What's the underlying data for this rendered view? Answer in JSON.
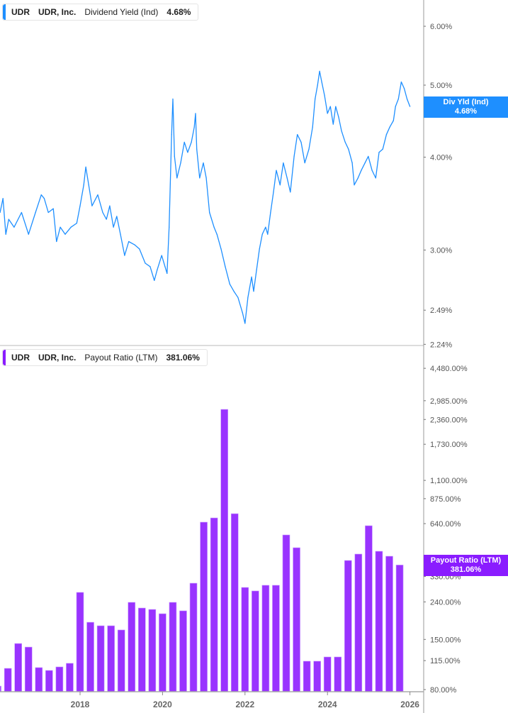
{
  "colors": {
    "yield": "#1e8fff",
    "payout": "#9933ff",
    "payout_tag": "#8a1cff",
    "axis": "#999999"
  },
  "top_legend": {
    "ticker": "UDR",
    "company": "UDR, Inc.",
    "metric": "Dividend Yield (Ind)",
    "value": "4.68%"
  },
  "top_tag": {
    "label": "Div Yld (Ind)",
    "value": "4.68%"
  },
  "bottom_legend": {
    "ticker": "UDR",
    "company": "UDR, Inc.",
    "metric": "Payout Ratio (LTM)",
    "value": "381.06%"
  },
  "bottom_tag": {
    "label": "Payout Ratio (LTM)",
    "value": "381.06%"
  },
  "chart_data": [
    {
      "type": "line",
      "title": "",
      "series_label": "Dividend Yield (Ind)",
      "y_scale": "log",
      "ylim": [
        2.24,
        6.6
      ],
      "y_ticks": [
        "6.00%",
        "5.00%",
        "4.00%",
        "3.00%",
        "2.49%",
        "2.24%"
      ],
      "y_tick_values": [
        6.0,
        5.0,
        4.0,
        3.0,
        2.49,
        2.24
      ],
      "grid": false,
      "points": [
        [
          2016.06,
          3.37
        ],
        [
          2016.13,
          3.52
        ],
        [
          2016.2,
          3.15
        ],
        [
          2016.27,
          3.3
        ],
        [
          2016.4,
          3.22
        ],
        [
          2016.58,
          3.37
        ],
        [
          2016.75,
          3.15
        ],
        [
          2016.92,
          3.37
        ],
        [
          2017.06,
          3.56
        ],
        [
          2017.13,
          3.52
        ],
        [
          2017.23,
          3.37
        ],
        [
          2017.35,
          3.41
        ],
        [
          2017.43,
          3.08
        ],
        [
          2017.52,
          3.22
        ],
        [
          2017.64,
          3.15
        ],
        [
          2017.78,
          3.22
        ],
        [
          2017.92,
          3.26
        ],
        [
          2018.0,
          3.44
        ],
        [
          2018.09,
          3.67
        ],
        [
          2018.14,
          3.88
        ],
        [
          2018.21,
          3.67
        ],
        [
          2018.29,
          3.44
        ],
        [
          2018.43,
          3.56
        ],
        [
          2018.55,
          3.37
        ],
        [
          2018.64,
          3.3
        ],
        [
          2018.72,
          3.44
        ],
        [
          2018.81,
          3.22
        ],
        [
          2018.89,
          3.33
        ],
        [
          2018.98,
          3.15
        ],
        [
          2019.08,
          2.95
        ],
        [
          2019.18,
          3.08
        ],
        [
          2019.32,
          3.05
        ],
        [
          2019.44,
          3.01
        ],
        [
          2019.58,
          2.88
        ],
        [
          2019.7,
          2.85
        ],
        [
          2019.8,
          2.73
        ],
        [
          2019.87,
          2.82
        ],
        [
          2019.98,
          2.95
        ],
        [
          2020.06,
          2.85
        ],
        [
          2020.11,
          2.79
        ],
        [
          2020.16,
          3.22
        ],
        [
          2020.22,
          4.29
        ],
        [
          2020.25,
          4.79
        ],
        [
          2020.29,
          4.01
        ],
        [
          2020.35,
          3.75
        ],
        [
          2020.44,
          3.93
        ],
        [
          2020.53,
          4.19
        ],
        [
          2020.61,
          4.06
        ],
        [
          2020.7,
          4.19
        ],
        [
          2020.77,
          4.39
        ],
        [
          2020.8,
          4.58
        ],
        [
          2020.83,
          4.1
        ],
        [
          2020.9,
          3.75
        ],
        [
          2020.99,
          3.93
        ],
        [
          2021.06,
          3.75
        ],
        [
          2021.14,
          3.37
        ],
        [
          2021.25,
          3.22
        ],
        [
          2021.32,
          3.15
        ],
        [
          2021.42,
          3.01
        ],
        [
          2021.52,
          2.85
        ],
        [
          2021.63,
          2.7
        ],
        [
          2021.73,
          2.64
        ],
        [
          2021.83,
          2.59
        ],
        [
          2021.94,
          2.47
        ],
        [
          2022.0,
          2.39
        ],
        [
          2022.07,
          2.59
        ],
        [
          2022.16,
          2.76
        ],
        [
          2022.21,
          2.64
        ],
        [
          2022.28,
          2.82
        ],
        [
          2022.35,
          3.01
        ],
        [
          2022.42,
          3.15
        ],
        [
          2022.5,
          3.22
        ],
        [
          2022.55,
          3.15
        ],
        [
          2022.62,
          3.37
        ],
        [
          2022.69,
          3.59
        ],
        [
          2022.76,
          3.84
        ],
        [
          2022.85,
          3.67
        ],
        [
          2022.93,
          3.93
        ],
        [
          2023.02,
          3.75
        ],
        [
          2023.1,
          3.59
        ],
        [
          2023.19,
          4.01
        ],
        [
          2023.27,
          4.29
        ],
        [
          2023.36,
          4.19
        ],
        [
          2023.45,
          3.93
        ],
        [
          2023.55,
          4.1
        ],
        [
          2023.64,
          4.39
        ],
        [
          2023.7,
          4.79
        ],
        [
          2023.76,
          5.0
        ],
        [
          2023.81,
          5.22
        ],
        [
          2023.86,
          5.05
        ],
        [
          2023.93,
          4.84
        ],
        [
          2024.0,
          4.58
        ],
        [
          2024.07,
          4.68
        ],
        [
          2024.14,
          4.43
        ],
        [
          2024.2,
          4.68
        ],
        [
          2024.27,
          4.53
        ],
        [
          2024.34,
          4.34
        ],
        [
          2024.43,
          4.19
        ],
        [
          2024.51,
          4.1
        ],
        [
          2024.6,
          3.93
        ],
        [
          2024.65,
          3.67
        ],
        [
          2024.74,
          3.75
        ],
        [
          2024.82,
          3.84
        ],
        [
          2024.91,
          3.93
        ],
        [
          2024.99,
          4.01
        ],
        [
          2025.08,
          3.84
        ],
        [
          2025.17,
          3.75
        ],
        [
          2025.25,
          4.06
        ],
        [
          2025.34,
          4.1
        ],
        [
          2025.43,
          4.29
        ],
        [
          2025.51,
          4.39
        ],
        [
          2025.6,
          4.48
        ],
        [
          2025.65,
          4.68
        ],
        [
          2025.72,
          4.79
        ],
        [
          2025.79,
          5.05
        ],
        [
          2025.86,
          4.95
        ],
        [
          2025.93,
          4.79
        ],
        [
          2026.0,
          4.68
        ]
      ]
    },
    {
      "type": "bar",
      "title": "",
      "series_label": "Payout Ratio (LTM)",
      "y_scale": "log",
      "ylim": [
        80,
        4480
      ],
      "y_ticks": [
        "4,480.00%",
        "2,985.00%",
        "2,360.00%",
        "1,730.00%",
        "1,100.00%",
        "875.00%",
        "640.00%",
        "330.00%",
        "240.00%",
        "150.00%",
        "115.00%",
        "80.00%"
      ],
      "y_tick_values": [
        4480,
        2985,
        2360,
        1730,
        1100,
        875,
        640,
        330,
        240,
        150,
        115,
        80
      ],
      "x_ticks": [
        "2018",
        "2020",
        "2022",
        "2024",
        "2026"
      ],
      "x_tick_values": [
        2018,
        2020,
        2022,
        2024,
        2026
      ],
      "grid": false,
      "x": [
        2016.0,
        2016.25,
        2016.5,
        2016.75,
        2017.0,
        2017.25,
        2017.5,
        2017.75,
        2018.0,
        2018.25,
        2018.5,
        2018.75,
        2019.0,
        2019.25,
        2019.5,
        2019.75,
        2020.0,
        2020.25,
        2020.5,
        2020.75,
        2021.0,
        2021.25,
        2021.5,
        2021.75,
        2022.0,
        2022.25,
        2022.5,
        2022.75,
        2023.0,
        2023.25,
        2023.5,
        2023.75,
        2024.0,
        2024.25,
        2024.5,
        2024.75,
        2025.0,
        2025.25,
        2025.5,
        2025.75
      ],
      "values": [
        83.6,
        104.4,
        142.5,
        136.3,
        105.4,
        101.7,
        106.3,
        111.2,
        270.4,
        186.0,
        178.0,
        178.0,
        168.9,
        238.7,
        222.3,
        218.4,
        207.0,
        238.7,
        214.6,
        303.4,
        651.9,
        687.4,
        2678.0,
        724.9,
        287.7,
        275.3,
        295.6,
        295.6,
        555.4,
        473.3,
        114.2,
        114.2,
        120.4,
        120.4,
        403.3,
        437.0,
        623.4,
        452.6,
        425.4,
        381.06
      ]
    }
  ]
}
